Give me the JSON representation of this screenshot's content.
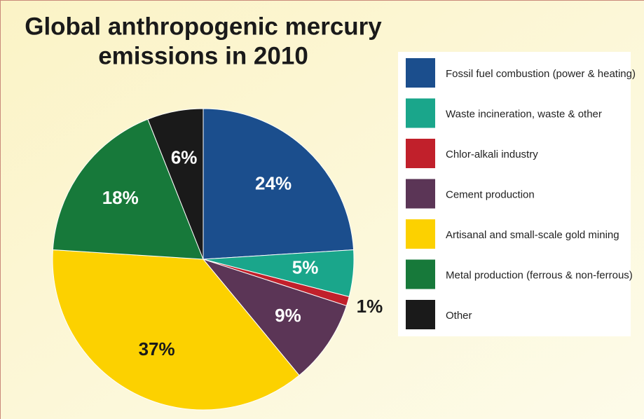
{
  "chart_data": {
    "type": "pie",
    "title": [
      "Global anthropogenic mercury",
      "emissions in 2010"
    ],
    "categories": [
      "Fossil fuel combustion (power & heating)",
      "Waste incineration, waste & other",
      "Chlor-alkali industry",
      "Cement production",
      "Artisanal and small-scale gold mining",
      "Metal production (ferrous & non-ferrous)",
      "Other"
    ],
    "values": [
      24,
      5,
      1,
      9,
      37,
      18,
      6
    ],
    "value_labels": [
      "24%",
      "5%",
      "1%",
      "9%",
      "37%",
      "18%",
      "6%"
    ],
    "colors": [
      "#1b4e8d",
      "#1aa68b",
      "#c1202b",
      "#5b3556",
      "#fcd100",
      "#17793a",
      "#1a1a1a"
    ]
  }
}
